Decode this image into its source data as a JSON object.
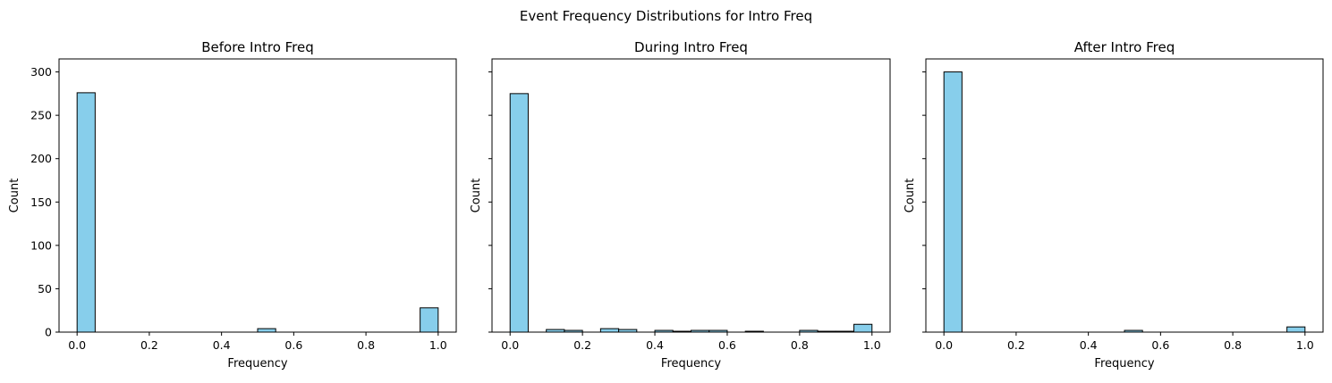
{
  "figure": {
    "title": "Event Frequency Distributions for Intro Freq"
  },
  "colors": {
    "bar_fill": "#87CEEB",
    "bar_edge": "#000000",
    "axis": "#000000",
    "background": "#ffffff"
  },
  "chart_data": [
    {
      "type": "bar",
      "subtype": "histogram",
      "title": "Before Intro Freq",
      "xlabel": "Frequency",
      "ylabel": "Count",
      "xlim": [
        -0.05,
        1.05
      ],
      "ylim": [
        0,
        315
      ],
      "xticks": [
        "0.0",
        "0.2",
        "0.4",
        "0.6",
        "0.8",
        "1.0"
      ],
      "yticks": [
        "0",
        "50",
        "100",
        "150",
        "200",
        "250",
        "300"
      ],
      "show_ytick_labels": true,
      "bins": [
        {
          "x0": 0.0,
          "x1": 0.05,
          "count": 276
        },
        {
          "x0": 0.5,
          "x1": 0.55,
          "count": 4
        },
        {
          "x0": 0.95,
          "x1": 1.0,
          "count": 28
        }
      ]
    },
    {
      "type": "bar",
      "subtype": "histogram",
      "title": "During Intro Freq",
      "xlabel": "Frequency",
      "ylabel": "Count",
      "xlim": [
        -0.05,
        1.05
      ],
      "ylim": [
        0,
        315
      ],
      "xticks": [
        "0.0",
        "0.2",
        "0.4",
        "0.6",
        "0.8",
        "1.0"
      ],
      "yticks": [
        "0",
        "50",
        "100",
        "150",
        "200",
        "250",
        "300"
      ],
      "show_ytick_labels": false,
      "bins": [
        {
          "x0": 0.0,
          "x1": 0.05,
          "count": 275
        },
        {
          "x0": 0.1,
          "x1": 0.15,
          "count": 3
        },
        {
          "x0": 0.15,
          "x1": 0.2,
          "count": 2
        },
        {
          "x0": 0.25,
          "x1": 0.3,
          "count": 4
        },
        {
          "x0": 0.3,
          "x1": 0.35,
          "count": 3
        },
        {
          "x0": 0.4,
          "x1": 0.45,
          "count": 2
        },
        {
          "x0": 0.45,
          "x1": 0.5,
          "count": 1
        },
        {
          "x0": 0.5,
          "x1": 0.55,
          "count": 2
        },
        {
          "x0": 0.55,
          "x1": 0.6,
          "count": 2
        },
        {
          "x0": 0.65,
          "x1": 0.7,
          "count": 1
        },
        {
          "x0": 0.8,
          "x1": 0.85,
          "count": 2
        },
        {
          "x0": 0.85,
          "x1": 0.9,
          "count": 1
        },
        {
          "x0": 0.9,
          "x1": 0.95,
          "count": 1
        },
        {
          "x0": 0.95,
          "x1": 1.0,
          "count": 9
        }
      ]
    },
    {
      "type": "bar",
      "subtype": "histogram",
      "title": "After Intro Freq",
      "xlabel": "Frequency",
      "ylabel": "Count",
      "xlim": [
        -0.05,
        1.05
      ],
      "ylim": [
        0,
        315
      ],
      "xticks": [
        "0.0",
        "0.2",
        "0.4",
        "0.6",
        "0.8",
        "1.0"
      ],
      "yticks": [
        "0",
        "50",
        "100",
        "150",
        "200",
        "250",
        "300"
      ],
      "show_ytick_labels": false,
      "bins": [
        {
          "x0": 0.0,
          "x1": 0.05,
          "count": 300
        },
        {
          "x0": 0.5,
          "x1": 0.55,
          "count": 2
        },
        {
          "x0": 0.95,
          "x1": 1.0,
          "count": 6
        }
      ]
    }
  ]
}
